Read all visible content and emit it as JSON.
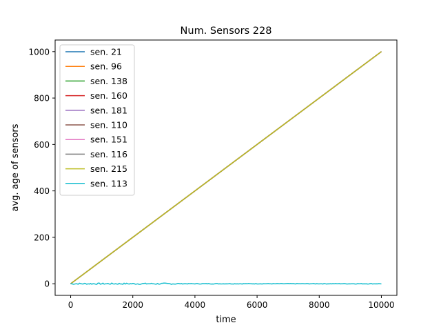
{
  "chart_data": {
    "type": "line",
    "title": "Num. Sensors 228",
    "xlabel": "time",
    "ylabel": "avg. age of sensors",
    "xlim": [
      -500,
      10500
    ],
    "ylim": [
      -50,
      1050
    ],
    "xticks": [
      0,
      2000,
      4000,
      6000,
      8000,
      10000
    ],
    "yticks": [
      0,
      200,
      400,
      600,
      800,
      1000
    ],
    "grid": false,
    "legend_position": "upper-left",
    "series": [
      {
        "name": "sen. 21",
        "color": "#1f77b4",
        "x": [
          0,
          10000
        ],
        "y": [
          0,
          1000
        ]
      },
      {
        "name": "sen. 96",
        "color": "#ff7f0e",
        "x": [
          0,
          10000
        ],
        "y": [
          0,
          1000
        ]
      },
      {
        "name": "sen. 138",
        "color": "#2ca02c",
        "x": [
          0,
          10000
        ],
        "y": [
          0,
          1000
        ]
      },
      {
        "name": "sen. 160",
        "color": "#d62728",
        "x": [
          0,
          10000
        ],
        "y": [
          0,
          1000
        ]
      },
      {
        "name": "sen. 181",
        "color": "#9467bd",
        "x": [
          0,
          10000
        ],
        "y": [
          0,
          1000
        ]
      },
      {
        "name": "sen. 110",
        "color": "#8c564b",
        "x": [
          0,
          10000
        ],
        "y": [
          0,
          1000
        ]
      },
      {
        "name": "sen. 151",
        "color": "#e377c2",
        "x": [
          0,
          10000
        ],
        "y": [
          0,
          1000
        ]
      },
      {
        "name": "sen. 116",
        "color": "#7f7f7f",
        "x": [
          0,
          10000
        ],
        "y": [
          0,
          1000
        ]
      },
      {
        "name": "sen. 215",
        "color": "#bcbd22",
        "x": [
          0,
          10000
        ],
        "y": [
          0,
          1000
        ]
      },
      {
        "name": "sen. 113",
        "color": "#17becf",
        "x": [
          0,
          10000
        ],
        "y": [
          0,
          0
        ],
        "noise_amplitude": 3
      }
    ]
  }
}
